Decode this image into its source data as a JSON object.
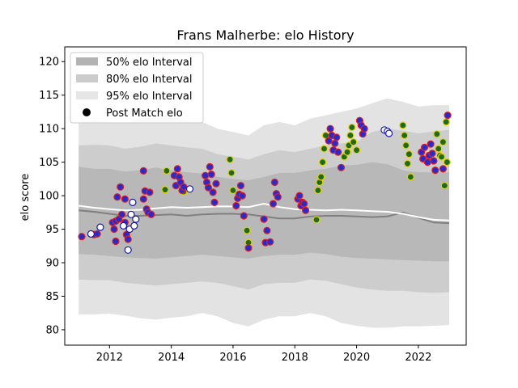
{
  "chart_data": {
    "type": "scatter",
    "title": "Frans Malherbe: elo History",
    "xlabel": "",
    "ylabel": "elo score",
    "xlim": [
      2010.55,
      2023.55
    ],
    "ylim": [
      77.7,
      122.2
    ],
    "x_ticks": [
      2012,
      2014,
      2016,
      2018,
      2020,
      2022
    ],
    "y_ticks": [
      80,
      85,
      90,
      95,
      100,
      105,
      110,
      115,
      120
    ],
    "legend": {
      "placement": "top-left",
      "entries": [
        {
          "label": "50% elo Interval",
          "color": "#b3b3b3",
          "kind": "patch"
        },
        {
          "label": "80% elo Interval",
          "color": "#cccccc",
          "kind": "patch"
        },
        {
          "label": "95% elo Interval",
          "color": "#e6e6e6",
          "kind": "patch"
        },
        {
          "label": "Post Match elo",
          "color": "#000000",
          "kind": "marker"
        }
      ]
    },
    "colors": {
      "band95": "#e3e3e3",
      "band80": "#cdcdcd",
      "band50": "#b8b8b8",
      "mean_line": "#ffffff",
      "median_line": "#808080",
      "loss_fill": "#2a2acc",
      "loss_edge": "#e02020",
      "win_fill": "#1f6a1f",
      "win_edge": "#e6d200",
      "draw_fill": "#ffffff",
      "draw_edge": "#1a1aaa"
    },
    "band_x": [
      2011.0,
      2011.5,
      2012.0,
      2012.5,
      2013.0,
      2013.5,
      2014.0,
      2014.5,
      2015.0,
      2015.5,
      2016.0,
      2016.5,
      2017.0,
      2017.5,
      2018.0,
      2018.5,
      2019.0,
      2019.5,
      2020.0,
      2020.5,
      2021.0,
      2021.5,
      2022.0,
      2022.5,
      2023.0
    ],
    "band95_upper": [
      111.0,
      111.3,
      111.0,
      110.8,
      111.5,
      112.0,
      111.8,
      111.2,
      111.0,
      110.0,
      109.5,
      109.0,
      110.5,
      111.0,
      110.5,
      111.5,
      112.0,
      112.5,
      113.0,
      113.8,
      114.5,
      114.0,
      113.3,
      113.5,
      113.5
    ],
    "band95_lower": [
      82.3,
      82.3,
      82.4,
      82.1,
      81.7,
      81.5,
      81.8,
      82.0,
      82.5,
      82.0,
      81.0,
      80.5,
      81.5,
      82.0,
      82.0,
      82.5,
      82.0,
      81.0,
      80.6,
      80.3,
      80.3,
      80.5,
      80.5,
      80.6,
      80.7
    ],
    "band80_upper": [
      107.5,
      107.6,
      107.5,
      107.0,
      107.3,
      107.8,
      107.5,
      107.2,
      107.0,
      106.2,
      105.8,
      105.4,
      106.2,
      106.8,
      106.5,
      107.0,
      107.5,
      107.8,
      108.0,
      109.5,
      110.0,
      109.7,
      109.3,
      109.6,
      109.8
    ],
    "band80_lower": [
      87.5,
      87.4,
      87.4,
      87.0,
      86.8,
      86.6,
      86.8,
      87.0,
      87.2,
      87.0,
      86.5,
      86.0,
      86.8,
      87.0,
      87.0,
      87.5,
      87.3,
      86.8,
      86.3,
      86.0,
      85.8,
      85.8,
      85.6,
      85.5,
      85.6
    ],
    "band50_upper": [
      104.3,
      104.0,
      104.0,
      103.6,
      103.8,
      104.2,
      103.8,
      103.5,
      103.3,
      102.8,
      102.5,
      102.3,
      102.8,
      103.4,
      103.4,
      103.8,
      104.0,
      104.5,
      104.6,
      105.0,
      104.7,
      103.8,
      103.5,
      103.5,
      103.5
    ],
    "band50_lower": [
      91.3,
      91.2,
      91.0,
      90.8,
      90.7,
      90.6,
      90.8,
      91.0,
      91.2,
      91.0,
      90.8,
      90.6,
      91.0,
      91.2,
      91.2,
      91.5,
      91.3,
      90.9,
      90.7,
      90.6,
      90.5,
      90.4,
      90.3,
      90.2,
      90.2
    ],
    "mean_line": [
      98.5,
      98.2,
      98.0,
      97.8,
      97.9,
      98.1,
      98.3,
      98.2,
      98.3,
      98.4,
      98.4,
      98.3,
      98.8,
      98.3,
      98.0,
      97.9,
      97.8,
      97.9,
      97.8,
      97.7,
      97.6,
      97.3,
      96.8,
      96.4,
      96.3
    ],
    "median_line": [
      97.8,
      97.6,
      97.3,
      97.0,
      97.0,
      97.1,
      97.2,
      97.0,
      97.2,
      97.3,
      97.3,
      97.2,
      96.9,
      96.6,
      96.6,
      96.9,
      97.0,
      97.0,
      96.9,
      96.8,
      96.9,
      97.5,
      96.7,
      96.0,
      95.9
    ],
    "points_loss": [
      [
        2011.1,
        93.9
      ],
      [
        2011.5,
        94.2
      ],
      [
        2011.6,
        94.3
      ],
      [
        2012.1,
        96.0
      ],
      [
        2012.15,
        95.0
      ],
      [
        2012.2,
        93.2
      ],
      [
        2012.2,
        96.2
      ],
      [
        2012.25,
        99.8
      ],
      [
        2012.3,
        96.5
      ],
      [
        2012.35,
        101.3
      ],
      [
        2012.4,
        97.2
      ],
      [
        2012.5,
        99.5
      ],
      [
        2012.5,
        96.0
      ],
      [
        2012.55,
        94.2
      ],
      [
        2012.6,
        93.5
      ],
      [
        2013.1,
        103.7
      ],
      [
        2013.1,
        99.5
      ],
      [
        2013.15,
        100.7
      ],
      [
        2013.2,
        98.0
      ],
      [
        2013.25,
        97.5
      ],
      [
        2013.3,
        100.5
      ],
      [
        2013.35,
        97.2
      ],
      [
        2014.1,
        103.0
      ],
      [
        2014.15,
        101.5
      ],
      [
        2014.2,
        104.0
      ],
      [
        2014.25,
        102.8
      ],
      [
        2014.3,
        102.0
      ],
      [
        2014.35,
        100.8
      ],
      [
        2014.4,
        101.3
      ],
      [
        2015.1,
        103.0
      ],
      [
        2015.15,
        102.0
      ],
      [
        2015.2,
        101.2
      ],
      [
        2015.25,
        104.3
      ],
      [
        2015.3,
        103.2
      ],
      [
        2015.35,
        100.5
      ],
      [
        2015.4,
        99.0
      ],
      [
        2015.45,
        101.8
      ],
      [
        2016.1,
        98.5
      ],
      [
        2016.15,
        99.6
      ],
      [
        2016.2,
        100.2
      ],
      [
        2016.25,
        101.5
      ],
      [
        2016.3,
        100.0
      ],
      [
        2016.35,
        97.0
      ],
      [
        2016.5,
        92.2
      ],
      [
        2017.0,
        96.5
      ],
      [
        2017.05,
        93.0
      ],
      [
        2017.1,
        94.8
      ],
      [
        2017.2,
        93.1
      ],
      [
        2017.3,
        98.8
      ],
      [
        2017.35,
        102.0
      ],
      [
        2017.4,
        100.3
      ],
      [
        2017.45,
        99.8
      ],
      [
        2018.1,
        99.5
      ],
      [
        2018.15,
        100.0
      ],
      [
        2018.2,
        98.5
      ],
      [
        2018.25,
        99.0
      ],
      [
        2018.3,
        98.8
      ],
      [
        2018.35,
        97.8
      ],
      [
        2019.1,
        108.2
      ],
      [
        2019.15,
        110.0
      ],
      [
        2019.2,
        109.0
      ],
      [
        2019.25,
        106.8
      ],
      [
        2019.3,
        107.8
      ],
      [
        2019.35,
        108.7
      ],
      [
        2019.4,
        106.5
      ],
      [
        2019.5,
        104.2
      ],
      [
        2020.1,
        111.2
      ],
      [
        2020.15,
        110.5
      ],
      [
        2020.2,
        109.2
      ],
      [
        2020.25,
        110.0
      ],
      [
        2022.1,
        106.5
      ],
      [
        2022.15,
        105.5
      ],
      [
        2022.2,
        107.2
      ],
      [
        2022.3,
        105.0
      ],
      [
        2022.35,
        106.0
      ],
      [
        2022.4,
        107.7
      ],
      [
        2022.45,
        106.3
      ],
      [
        2022.5,
        105.2
      ],
      [
        2022.55,
        103.8
      ],
      [
        2022.8,
        104.0
      ],
      [
        2022.95,
        112.0
      ]
    ],
    "points_win": [
      [
        2013.8,
        100.9
      ],
      [
        2013.85,
        103.7
      ],
      [
        2014.4,
        100.6
      ],
      [
        2015.9,
        105.4
      ],
      [
        2015.95,
        103.4
      ],
      [
        2016.0,
        100.8
      ],
      [
        2016.45,
        94.8
      ],
      [
        2016.5,
        93.0
      ],
      [
        2018.7,
        96.4
      ],
      [
        2018.75,
        100.8
      ],
      [
        2018.8,
        102.0
      ],
      [
        2018.85,
        102.8
      ],
      [
        2018.9,
        105.0
      ],
      [
        2018.95,
        107.0
      ],
      [
        2019.0,
        109.0
      ],
      [
        2019.6,
        105.8
      ],
      [
        2019.7,
        106.5
      ],
      [
        2019.75,
        107.5
      ],
      [
        2019.8,
        109.0
      ],
      [
        2019.85,
        110.2
      ],
      [
        2019.9,
        108.0
      ],
      [
        2020.0,
        106.8
      ],
      [
        2021.5,
        110.5
      ],
      [
        2021.55,
        109.0
      ],
      [
        2021.6,
        107.5
      ],
      [
        2021.65,
        104.8
      ],
      [
        2021.7,
        106.2
      ],
      [
        2021.75,
        102.8
      ],
      [
        2022.6,
        109.2
      ],
      [
        2022.65,
        107.0
      ],
      [
        2022.7,
        106.0
      ],
      [
        2022.75,
        105.8
      ],
      [
        2022.8,
        108.0
      ],
      [
        2022.85,
        101.5
      ],
      [
        2022.9,
        111.0
      ],
      [
        2022.93,
        105.0
      ]
    ],
    "points_draw": [
      [
        2011.4,
        94.3
      ],
      [
        2011.7,
        95.3
      ],
      [
        2012.45,
        95.5
      ],
      [
        2012.6,
        91.9
      ],
      [
        2012.65,
        95.0
      ],
      [
        2012.7,
        97.2
      ],
      [
        2012.75,
        99.0
      ],
      [
        2012.8,
        95.5
      ],
      [
        2012.85,
        96.5
      ],
      [
        2014.6,
        101.0
      ],
      [
        2020.9,
        109.8
      ],
      [
        2021.0,
        109.6
      ],
      [
        2021.05,
        109.3
      ]
    ]
  }
}
